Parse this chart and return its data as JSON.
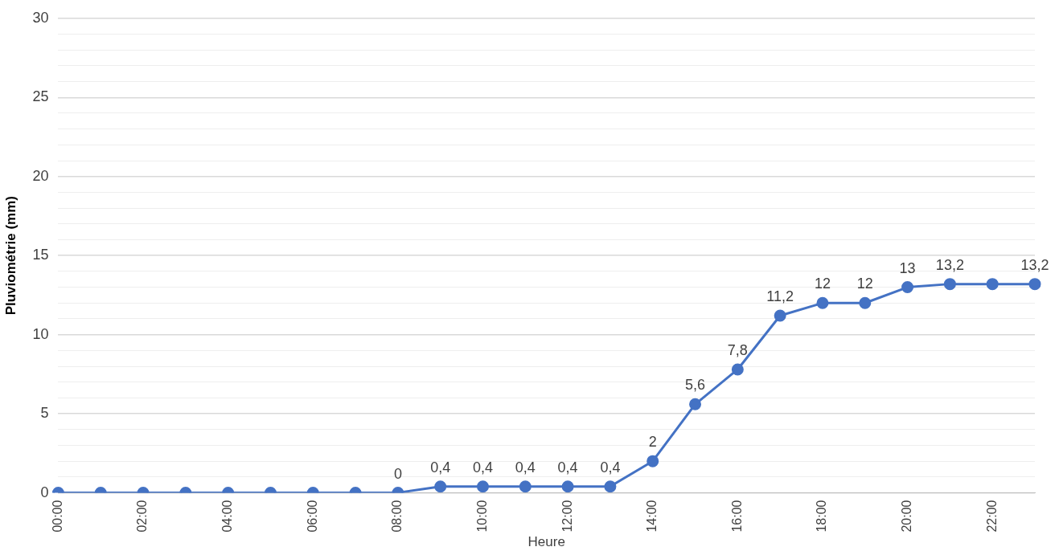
{
  "chart_data": {
    "type": "line",
    "xlabel": "Heure",
    "ylabel": "Pluviométrie (mm)",
    "categories": [
      "00:00",
      null,
      "02:00",
      null,
      "04:00",
      null,
      "06:00",
      null,
      "08:00",
      null,
      "10:00",
      null,
      "12:00",
      null,
      "14:00",
      null,
      "16:00",
      null,
      "18:00",
      null,
      "20:00",
      null,
      "22:00",
      null
    ],
    "series": [
      {
        "color": "#4472c4",
        "values": [
          0,
          0,
          0,
          0,
          0,
          0,
          0,
          0,
          0,
          0.4,
          0.4,
          0.4,
          0.4,
          0.4,
          2,
          5.6,
          7.8,
          11.2,
          12,
          12,
          13,
          13.2,
          13.2,
          13.2
        ],
        "value_labels": [
          null,
          null,
          null,
          null,
          null,
          null,
          null,
          null,
          "0",
          "0,4",
          "0,4",
          "0,4",
          "0,4",
          "0,4",
          "2",
          "5,6",
          "7,8",
          "11,2",
          "12",
          "12",
          "13",
          "13,2",
          null,
          "13,2"
        ]
      }
    ],
    "ylim": [
      0,
      30
    ],
    "yticks": [
      0,
      {
        "value": 1,
        "label": null
      },
      {
        "value": 2,
        "label": null
      },
      {
        "value": 3,
        "label": null
      },
      {
        "value": 4,
        "label": null
      },
      5,
      {
        "value": 6,
        "label": null
      },
      {
        "value": 7,
        "label": null
      },
      {
        "value": 8,
        "label": null
      },
      {
        "value": 9,
        "label": null
      },
      10,
      {
        "value": 11,
        "label": null
      },
      {
        "value": 12,
        "label": null
      },
      {
        "value": 13,
        "label": null
      },
      {
        "value": 14,
        "label": null
      },
      15,
      {
        "value": 16,
        "label": null
      },
      {
        "value": 17,
        "label": null
      },
      {
        "value": 18,
        "label": null
      },
      {
        "value": 19,
        "label": null
      },
      20,
      {
        "value": 21,
        "label": null
      },
      {
        "value": 22,
        "label": null
      },
      {
        "value": 23,
        "label": null
      },
      {
        "value": 24,
        "label": null
      },
      25,
      {
        "value": 26,
        "label": null
      },
      {
        "value": 27,
        "label": null
      },
      {
        "value": 28,
        "label": null
      },
      {
        "value": 29,
        "label": null
      },
      30
    ],
    "grid": "y",
    "legend": false,
    "marker": "circle",
    "line_style": "solid"
  }
}
